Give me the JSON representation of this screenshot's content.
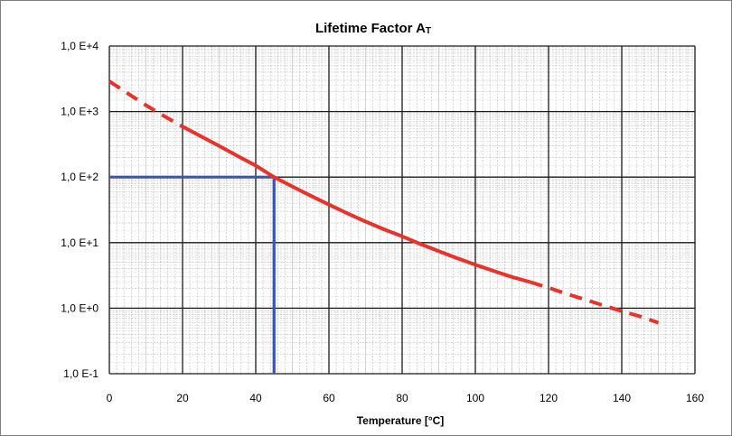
{
  "chart_data": {
    "type": "line",
    "title": "Lifetime Factor A",
    "title_subscript": "T",
    "xlabel": "Temperature [°C]",
    "ylabel": "",
    "x_scale": "linear",
    "y_scale": "log",
    "xlim": [
      0,
      160
    ],
    "ylim": [
      0.1,
      10000
    ],
    "x_ticks": [
      0,
      20,
      40,
      60,
      80,
      100,
      120,
      140,
      160
    ],
    "y_ticks": [
      0.1,
      1,
      10,
      100,
      1000,
      10000
    ],
    "y_tick_labels": [
      "1,0 E-1",
      "1,0 E+0",
      "1,0 E+1",
      "1,0 E+2",
      "1,0 E+3",
      "1,0 E+4"
    ],
    "grid": true,
    "legend": "none",
    "series": [
      {
        "style": "dashed",
        "color": "#e8322b",
        "x": [
          0,
          5,
          10,
          15,
          20
        ],
        "y": [
          2900,
          1900,
          1250,
          850,
          590
        ]
      },
      {
        "style": "solid",
        "color": "#e8322b",
        "x": [
          20,
          25,
          30,
          35,
          40,
          45,
          50,
          55,
          60,
          65,
          70,
          75,
          80,
          85,
          90,
          95,
          100,
          105,
          110,
          115
        ],
        "y": [
          590,
          420,
          300,
          210,
          150,
          100,
          72,
          52,
          38,
          28,
          21,
          16,
          12.5,
          9.5,
          7.4,
          5.8,
          4.6,
          3.7,
          3.0,
          2.5
        ]
      },
      {
        "style": "dashed",
        "color": "#e8322b",
        "x": [
          115,
          120,
          125,
          130,
          135,
          140,
          145,
          150
        ],
        "y": [
          2.5,
          2.05,
          1.65,
          1.35,
          1.1,
          0.9,
          0.75,
          0.6
        ]
      }
    ],
    "reference_lines": {
      "color": "#3a55b4",
      "x": 45,
      "y": 100
    }
  }
}
